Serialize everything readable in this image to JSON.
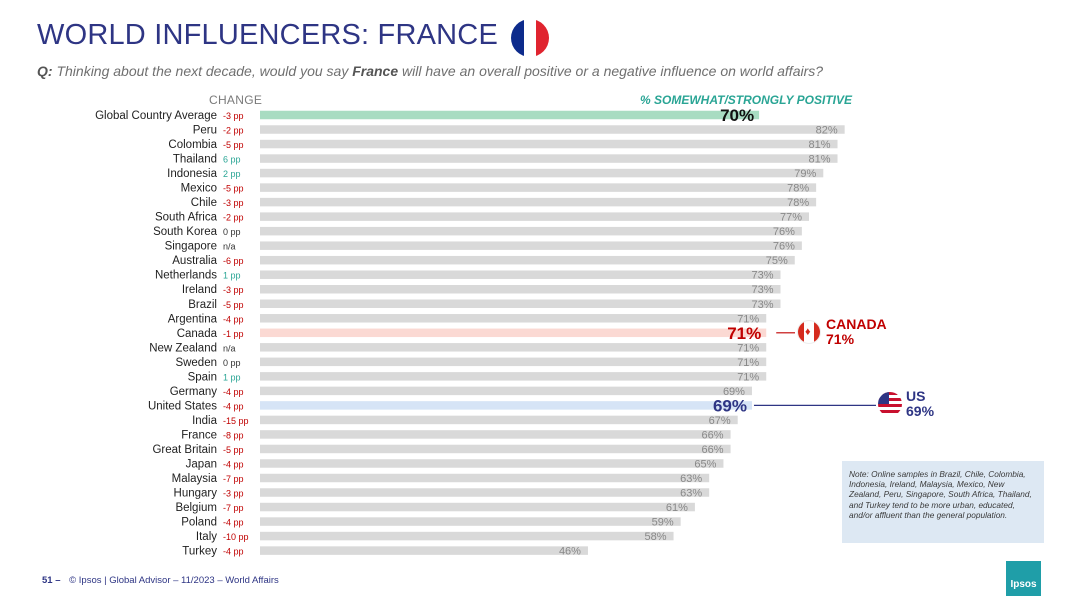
{
  "title": "WORLD INFLUENCERS: FRANCE",
  "question": {
    "prefix": "Q:",
    "before": "Thinking about the next decade, would you say",
    "bold": "France",
    "after": "will have an overall positive or a negative influence on world affairs?"
  },
  "headers": {
    "change": "CHANGE",
    "positive": "% SOMEWHAT/STRONGLY POSITIVE"
  },
  "callouts": {
    "canada": {
      "label": "CANADA",
      "value": "71%"
    },
    "us": {
      "label": "US",
      "value": "69%"
    }
  },
  "note": "Note: Online samples in Brazil, Chile, Colombia, Indonesia, Ireland, Malaysia, Mexico, New Zealand, Peru, Singapore, South Africa, Thailand, and Turkey tend to be more urban, educated, and/or affluent than the general population.",
  "footer": {
    "page": "51 –",
    "source": "© Ipsos | Global Advisor – 11/2023 – World Affairs"
  },
  "logo": "Ipsos",
  "colors": {
    "title": "#2e3584",
    "accent": "#2aa595",
    "global_bar": "#a8dcc2",
    "canada_bar": "#fbd9d3",
    "us_bar": "#d6e4f6",
    "default_bar": "#d9d9d9",
    "negative_change": "#c00000",
    "positive_change": "#2aa595",
    "canada": "#c00000",
    "us": "#2e3584"
  },
  "chart_data": {
    "type": "bar",
    "orientation": "horizontal",
    "xlim": [
      0,
      100
    ],
    "categories": [
      "Global Country Average",
      "Peru",
      "Colombia",
      "Thailand",
      "Indonesia",
      "Mexico",
      "Chile",
      "South Africa",
      "South Korea",
      "Singapore",
      "Australia",
      "Netherlands",
      "Ireland",
      "Brazil",
      "Argentina",
      "Canada",
      "New Zealand",
      "Sweden",
      "Spain",
      "Germany",
      "United States",
      "India",
      "France",
      "Great Britain",
      "Japan",
      "Malaysia",
      "Hungary",
      "Belgium",
      "Poland",
      "Italy",
      "Turkey"
    ],
    "values": [
      70,
      82,
      81,
      81,
      79,
      78,
      78,
      77,
      76,
      76,
      75,
      73,
      73,
      73,
      71,
      71,
      71,
      71,
      71,
      69,
      69,
      67,
      66,
      66,
      65,
      63,
      63,
      61,
      59,
      58,
      46
    ],
    "value_labels": [
      "70%",
      "82%",
      "81%",
      "81%",
      "79%",
      "78%",
      "78%",
      "77%",
      "76%",
      "76%",
      "75%",
      "73%",
      "73%",
      "73%",
      "71%",
      "71%",
      "71%",
      "71%",
      "71%",
      "69%",
      "69%",
      "67%",
      "66%",
      "66%",
      "65%",
      "63%",
      "63%",
      "61%",
      "59%",
      "58%",
      "46%"
    ],
    "change": [
      "-3 pp",
      "-2 pp",
      "-5 pp",
      "6 pp",
      "2 pp",
      "-5 pp",
      "-3 pp",
      "-2 pp",
      "0 pp",
      "n/a",
      "-6 pp",
      "1 pp",
      "-3 pp",
      "-5 pp",
      "-4 pp",
      "-1 pp",
      "n/a",
      "0 pp",
      "1 pp",
      "-4 pp",
      "-4 pp",
      "-15 pp",
      "-8 pp",
      "-5 pp",
      "-4 pp",
      "-7 pp",
      "-3 pp",
      "-7 pp",
      "-4 pp",
      "-10 pp",
      "-4 pp"
    ],
    "highlighted": {
      "Global Country Average": "global",
      "Canada": "canada",
      "United States": "us"
    }
  }
}
